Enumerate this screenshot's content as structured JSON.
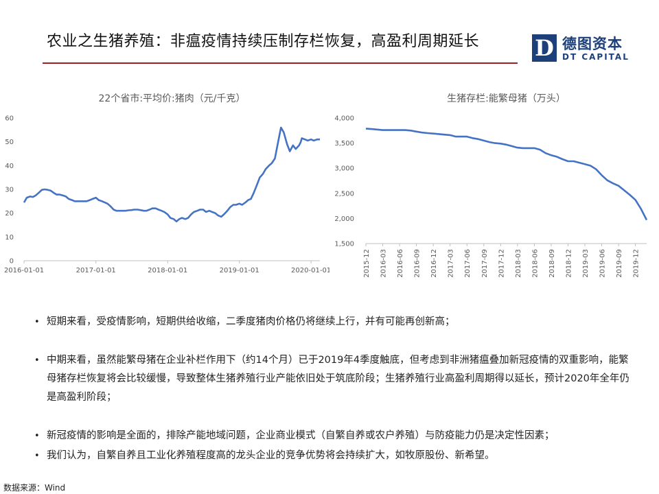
{
  "slide": {
    "title": "农业之生猪养殖：非瘟疫情持续压制存栏恢复，高盈利周期延长",
    "source": "数据来源：Wind"
  },
  "logo": {
    "mark": "D",
    "cn": "德图资本",
    "en": "DT CAPITAL",
    "color": "#1d3f7a"
  },
  "accent_color": "#a31d24",
  "series_color": "#4472c4",
  "bullets": [
    "短期来看，受疫情影响，短期供给收缩，二季度猪肉价格仍将继续上行，并有可能再创新高；",
    "中期来看，虽然能繁母猪在企业补栏作用下（约14个月）已于2019年4季度触底，但考虑到非洲猪瘟叠加新冠疫情的双重影响，能繁母猪存栏恢复将会比较缓慢，导致整体生猪养殖行业产能依旧处于筑底阶段；生猪养殖行业高盈利周期得以延长，预计2020年全年仍是高盈利阶段；",
    "新冠疫情的影响是全面的，排除产能地域问题，企业商业模式（自繁自养或农户养殖）与防疫能力仍是决定性因素；",
    "我们认为，自繁自养且工业化养殖程度高的龙头企业的竞争优势将会持续扩大，如牧原股份、新希望。"
  ],
  "chart_data": [
    {
      "type": "line",
      "title": "22个省市:平均价:猪肉（元/千克）",
      "xlabel": "",
      "ylabel": "",
      "ylim": [
        0,
        60
      ],
      "yticks": [
        0,
        10,
        20,
        30,
        40,
        50,
        60
      ],
      "xlim": [
        "2016-01-01",
        "2020-02-15"
      ],
      "xticks": [
        "2016-01-01",
        "2017-01-01",
        "2018-01-01",
        "2019-01-01",
        "2020-01-01"
      ],
      "grid": false,
      "series": [
        {
          "x": [
            "2016-01-01",
            "2016-01-15",
            "2016-02-01",
            "2016-02-15",
            "2016-03-01",
            "2016-03-15",
            "2016-04-01",
            "2016-04-15",
            "2016-05-01",
            "2016-05-15",
            "2016-06-01",
            "2016-06-15",
            "2016-07-01",
            "2016-07-15",
            "2016-08-01",
            "2016-08-15",
            "2016-09-01",
            "2016-09-15",
            "2016-10-01",
            "2016-10-15",
            "2016-11-01",
            "2016-11-15",
            "2016-12-01",
            "2016-12-15",
            "2017-01-01",
            "2017-01-15",
            "2017-02-01",
            "2017-02-15",
            "2017-03-01",
            "2017-03-15",
            "2017-04-01",
            "2017-04-15",
            "2017-05-01",
            "2017-05-15",
            "2017-06-01",
            "2017-06-15",
            "2017-07-01",
            "2017-07-15",
            "2017-08-01",
            "2017-08-15",
            "2017-09-01",
            "2017-09-15",
            "2017-10-01",
            "2017-10-15",
            "2017-11-01",
            "2017-11-15",
            "2017-12-01",
            "2017-12-15",
            "2018-01-01",
            "2018-01-15",
            "2018-02-01",
            "2018-02-15",
            "2018-03-01",
            "2018-03-15",
            "2018-04-01",
            "2018-04-15",
            "2018-05-01",
            "2018-05-15",
            "2018-06-01",
            "2018-06-15",
            "2018-07-01",
            "2018-07-15",
            "2018-08-01",
            "2018-08-15",
            "2018-09-01",
            "2018-09-15",
            "2018-10-01",
            "2018-10-15",
            "2018-11-01",
            "2018-11-15",
            "2018-12-01",
            "2018-12-15",
            "2019-01-01",
            "2019-01-15",
            "2019-02-01",
            "2019-02-15",
            "2019-03-01",
            "2019-03-15",
            "2019-04-01",
            "2019-04-15",
            "2019-05-01",
            "2019-05-15",
            "2019-06-01",
            "2019-06-15",
            "2019-07-01",
            "2019-07-15",
            "2019-08-01",
            "2019-08-15",
            "2019-09-01",
            "2019-09-15",
            "2019-10-01",
            "2019-10-15",
            "2019-11-01",
            "2019-11-10",
            "2019-11-15",
            "2019-12-01",
            "2019-12-15",
            "2020-01-01",
            "2020-01-15",
            "2020-02-01",
            "2020-02-15"
          ],
          "values": [
            24.5,
            26.5,
            27.0,
            26.8,
            27.5,
            28.5,
            29.8,
            30.0,
            29.8,
            29.5,
            28.5,
            27.8,
            27.8,
            27.5,
            27.0,
            26.0,
            25.5,
            25.0,
            25.0,
            25.0,
            25.0,
            25.0,
            25.5,
            26.0,
            26.5,
            25.5,
            25.0,
            24.5,
            24.0,
            23.0,
            21.5,
            21.0,
            21.0,
            21.0,
            21.0,
            21.2,
            21.3,
            21.5,
            21.5,
            21.3,
            21.0,
            21.0,
            21.5,
            22.0,
            22.0,
            21.5,
            21.0,
            20.5,
            19.5,
            18.0,
            17.5,
            16.5,
            17.5,
            18.0,
            17.5,
            18.0,
            19.5,
            20.5,
            21.0,
            21.5,
            21.5,
            20.5,
            21.0,
            20.5,
            20.0,
            19.0,
            18.5,
            19.5,
            21.0,
            22.5,
            23.5,
            23.5,
            24.0,
            23.5,
            24.5,
            25.5,
            26.0,
            28.5,
            32.0,
            35.0,
            36.5,
            38.5,
            40.0,
            41.0,
            43.0,
            49.0,
            56.0,
            54.0,
            49.0,
            46.0,
            48.5,
            47.0,
            48.5,
            50.0,
            51.5,
            51.0,
            50.5,
            51.0,
            50.5,
            51.0,
            51.0
          ]
        }
      ]
    },
    {
      "type": "line",
      "title": "生猪存栏:能繁母猪（万头）",
      "xlabel": "",
      "ylabel": "",
      "ylim": [
        1500,
        4000
      ],
      "yticks": [
        1500,
        2000,
        2500,
        3000,
        3500,
        4000
      ],
      "ytick_labels": [
        "1,500",
        "2,000",
        "2,500",
        "3,000",
        "3,500",
        "4,000"
      ],
      "grid": false,
      "xticks": [
        "2015-12",
        "2016-03",
        "2016-06",
        "2016-09",
        "2016-12",
        "2017-03",
        "2017-06",
        "2017-09",
        "2017-12",
        "2018-03",
        "2018-06",
        "2018-09",
        "2018-12",
        "2019-03",
        "2019-06",
        "2019-09",
        "2019-12"
      ],
      "series": [
        {
          "x": [
            "2015-12",
            "2016-01",
            "2016-02",
            "2016-03",
            "2016-04",
            "2016-05",
            "2016-06",
            "2016-07",
            "2016-08",
            "2016-09",
            "2016-10",
            "2016-11",
            "2016-12",
            "2017-01",
            "2017-02",
            "2017-03",
            "2017-04",
            "2017-05",
            "2017-06",
            "2017-07",
            "2017-08",
            "2017-09",
            "2017-10",
            "2017-11",
            "2017-12",
            "2018-01",
            "2018-02",
            "2018-03",
            "2018-04",
            "2018-05",
            "2018-06",
            "2018-07",
            "2018-08",
            "2018-09",
            "2018-10",
            "2018-11",
            "2018-12",
            "2019-01",
            "2019-02",
            "2019-03",
            "2019-04",
            "2019-05",
            "2019-06",
            "2019-07",
            "2019-08",
            "2019-09",
            "2019-10",
            "2019-11",
            "2019-12",
            "2020-01",
            "2020-02"
          ],
          "values": [
            3790,
            3780,
            3770,
            3760,
            3760,
            3760,
            3760,
            3760,
            3750,
            3730,
            3710,
            3700,
            3690,
            3680,
            3670,
            3660,
            3630,
            3630,
            3630,
            3600,
            3580,
            3550,
            3520,
            3500,
            3490,
            3470,
            3440,
            3410,
            3400,
            3400,
            3400,
            3370,
            3300,
            3260,
            3230,
            3180,
            3140,
            3140,
            3110,
            3080,
            3050,
            2980,
            2860,
            2760,
            2700,
            2650,
            2560,
            2470,
            2370,
            2190,
            1970
          ]
        }
      ]
    }
  ]
}
